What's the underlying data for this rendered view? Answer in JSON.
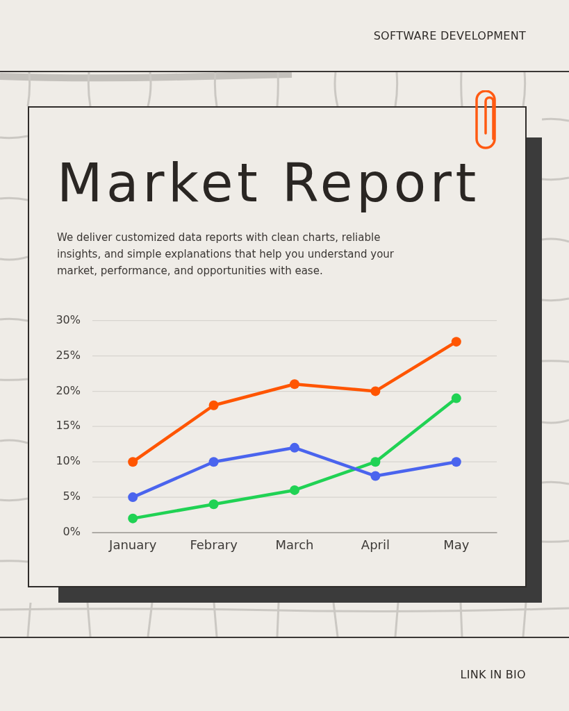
{
  "chart_data": {
    "type": "line",
    "title": "Market Report",
    "subtitle": "We deliver customized data reports with clean charts, reliable insights, and simple explanations that help you understand your market, performance, and opportunities with ease.",
    "annotations": [
      "SOFTWARE DEVELOPMENT",
      "LINK IN BIO"
    ],
    "categories": [
      "January",
      "Febrary",
      "March",
      "April",
      "May"
    ],
    "series": [
      {
        "color": "#ff5500",
        "values": [
          10,
          18,
          21,
          20,
          27
        ]
      },
      {
        "color": "#4a64ee",
        "values": [
          5,
          10,
          12,
          8,
          10
        ]
      },
      {
        "color": "#20d254",
        "values": [
          2,
          4,
          6,
          10,
          19
        ]
      }
    ],
    "ylim": [
      0,
      30
    ],
    "yticks": [
      {
        "value": 0,
        "label": "0%"
      },
      {
        "value": 5,
        "label": "5%"
      },
      {
        "value": 10,
        "label": "10%"
      },
      {
        "value": 15,
        "label": "15%"
      },
      {
        "value": 20,
        "label": "20%"
      },
      {
        "value": 25,
        "label": "25%"
      },
      {
        "value": 30,
        "label": "30%"
      }
    ],
    "grid": "y",
    "marker": "circle",
    "line_style": "solid"
  }
}
